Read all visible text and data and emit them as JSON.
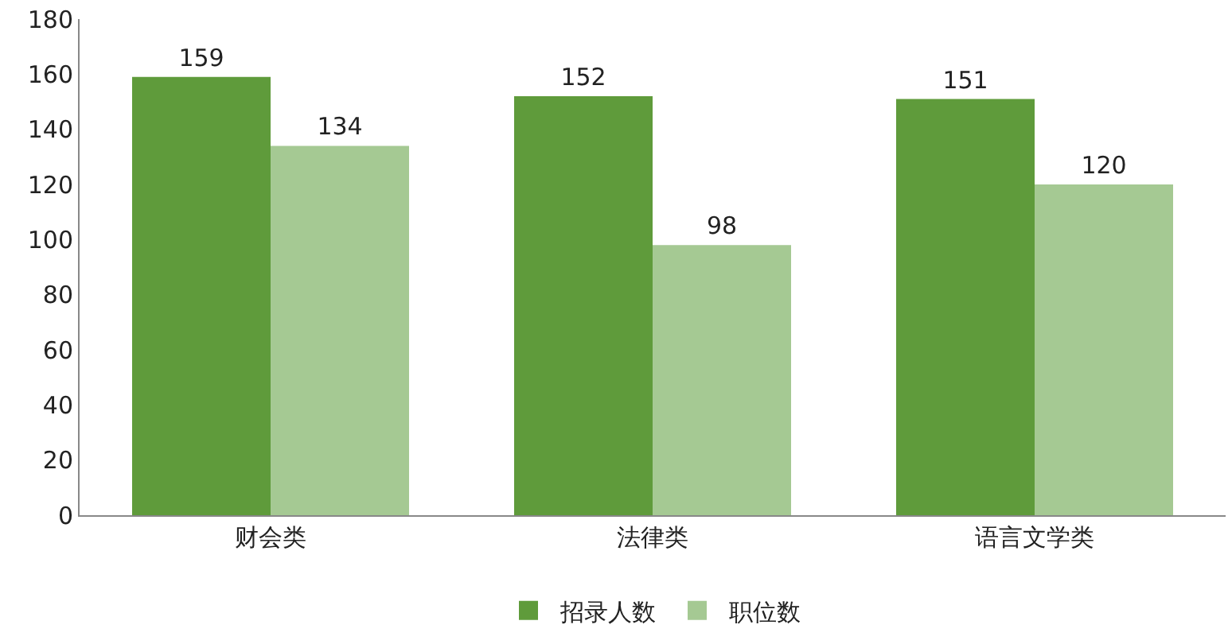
{
  "chart_data": {
    "type": "bar",
    "categories": [
      "财会类",
      "法律类",
      "语言文学类"
    ],
    "series": [
      {
        "name": "招录人数",
        "color": "#5f9b3b",
        "values": [
          159,
          152,
          151
        ]
      },
      {
        "name": "职位数",
        "color": "#a5c993",
        "values": [
          134,
          98,
          120
        ]
      }
    ],
    "ylim": [
      0,
      180
    ],
    "yticks": [
      0,
      20,
      40,
      60,
      80,
      100,
      120,
      140,
      160,
      180
    ],
    "data_labels": true,
    "grid": false,
    "legend": "bottom"
  }
}
